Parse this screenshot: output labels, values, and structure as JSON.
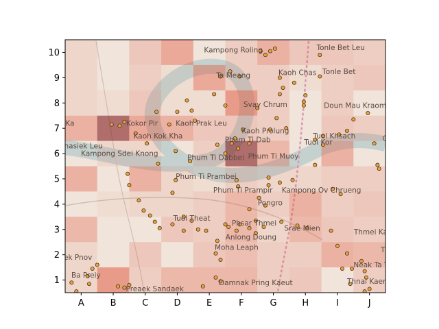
{
  "chart_data": {
    "type": "heatmap",
    "title": "",
    "xlabel": "",
    "ylabel": "",
    "x_categories": [
      "A",
      "B",
      "C",
      "D",
      "E",
      "F",
      "G",
      "H",
      "I",
      "J"
    ],
    "y_categories": [
      "1",
      "2",
      "3",
      "4",
      "5",
      "6",
      "7",
      "8",
      "9",
      "10"
    ],
    "grid": false,
    "colormap": "Reds (semi-transparent over basemap)",
    "cell_intensity_rows_top_to_bottom": [
      [
        0.15,
        0.05,
        0.25,
        0.45,
        0.05,
        0.2,
        0.4,
        0.25,
        0.25,
        0.2
      ],
      [
        0.15,
        0.05,
        0.2,
        0.1,
        0.45,
        0.2,
        0.2,
        0.1,
        0.2,
        0.25
      ],
      [
        0.15,
        0.1,
        0.25,
        0.1,
        0.1,
        0.55,
        0.2,
        0.05,
        0.2,
        0.05
      ],
      [
        0.4,
        0.75,
        0.45,
        0.4,
        0.25,
        0.25,
        0.2,
        0.05,
        0.25,
        0.2
      ],
      [
        0.05,
        0.15,
        0.15,
        0.05,
        0.2,
        0.75,
        0.35,
        0.05,
        0.4,
        0.05
      ],
      [
        0.4,
        0.05,
        0.4,
        0.15,
        0.1,
        0.2,
        0.15,
        0.15,
        0.2,
        0.2
      ],
      [
        0.05,
        0.1,
        0.15,
        0.15,
        0.2,
        0.35,
        0.2,
        0.4,
        0.2,
        0.25
      ],
      [
        0.35,
        0.05,
        0.05,
        0.25,
        0.2,
        0.35,
        0.15,
        0.35,
        0.25,
        0.2
      ],
      [
        0.15,
        0.05,
        0.25,
        0.05,
        0.25,
        0.3,
        0.2,
        0.2,
        0.4,
        0.35
      ],
      [
        0.15,
        0.55,
        0.2,
        0.35,
        0.35,
        0.35,
        0.2,
        0.25,
        0.05,
        0.2
      ]
    ],
    "points": [
      [
        1.95,
        7.15
      ],
      [
        2.35,
        7.25
      ],
      [
        2.2,
        7.1
      ],
      [
        3.35,
        7.65
      ],
      [
        2.7,
        6.8
      ],
      [
        3.05,
        6.4
      ],
      [
        3.95,
        6.1
      ],
      [
        3.4,
        5.6
      ],
      [
        4.4,
        5.7
      ],
      [
        5.25,
        6.35
      ],
      [
        5.5,
        6.0
      ],
      [
        5.7,
        6.4
      ],
      [
        5.8,
        6.6
      ],
      [
        6.25,
        6.4
      ],
      [
        5.9,
        6.2
      ],
      [
        5.9,
        4.7
      ],
      [
        5.85,
        4.95
      ],
      [
        6.55,
        4.25
      ],
      [
        6.85,
        4.75
      ],
      [
        5.6,
        3.1
      ],
      [
        5.5,
        3.2
      ],
      [
        5.85,
        2.95
      ],
      [
        5.95,
        3.2
      ],
      [
        6.25,
        3.05
      ],
      [
        6.45,
        3.35
      ],
      [
        6.7,
        3.1
      ],
      [
        6.45,
        2.85
      ],
      [
        5.25,
        2.55
      ],
      [
        5.2,
        2.05
      ],
      [
        5.35,
        1.8
      ],
      [
        5.2,
        1.1
      ],
      [
        5.35,
        0.95
      ],
      [
        4.8,
        0.75
      ],
      [
        2.15,
        0.75
      ],
      [
        2.5,
        0.8
      ],
      [
        2.35,
        0.7
      ],
      [
        6.6,
        10.05
      ],
      [
        6.9,
        10.05
      ],
      [
        7.05,
        10.15
      ],
      [
        6.75,
        9.9
      ],
      [
        5.65,
        9.25
      ],
      [
        5.35,
        9.05
      ],
      [
        5.95,
        9.05
      ],
      [
        7.2,
        9.0
      ],
      [
        7.3,
        8.6
      ],
      [
        7.2,
        8.35
      ],
      [
        7.1,
        7.4
      ],
      [
        7.4,
        7.0
      ],
      [
        6.9,
        6.95
      ],
      [
        6.5,
        7.8
      ],
      [
        7.95,
        8.05
      ],
      [
        7.95,
        7.9
      ],
      [
        8.0,
        8.3
      ],
      [
        7.65,
        8.8
      ],
      [
        8.45,
        9.05
      ],
      [
        8.45,
        9.9
      ],
      [
        4.3,
        8.1
      ],
      [
        4.0,
        7.65
      ],
      [
        4.45,
        7.7
      ],
      [
        4.55,
        7.3
      ],
      [
        3.75,
        7.15
      ],
      [
        5.15,
        8.35
      ],
      [
        5.5,
        7.9
      ],
      [
        6.05,
        6.95
      ],
      [
        6.85,
        5.05
      ],
      [
        7.2,
        4.85
      ],
      [
        7.6,
        4.95
      ],
      [
        6.75,
        3.95
      ],
      [
        6.25,
        3.8
      ],
      [
        7.25,
        3.3
      ],
      [
        7.75,
        3.15
      ],
      [
        8.05,
        3.05
      ],
      [
        8.8,
        2.95
      ],
      [
        9.0,
        2.35
      ],
      [
        9.3,
        2.05
      ],
      [
        9.15,
        1.45
      ],
      [
        9.45,
        1.45
      ],
      [
        9.75,
        1.75
      ],
      [
        9.85,
        1.35
      ],
      [
        9.9,
        1.1
      ],
      [
        9.4,
        0.85
      ],
      [
        10.0,
        0.65
      ],
      [
        9.85,
        0.55
      ],
      [
        10.25,
        5.55
      ],
      [
        10.3,
        5.4
      ],
      [
        10.15,
        6.4
      ],
      [
        9.95,
        7.6
      ],
      [
        9.5,
        7.35
      ],
      [
        9.3,
        6.9
      ],
      [
        9.05,
        6.75
      ],
      [
        8.55,
        6.7
      ],
      [
        8.3,
        6.55
      ],
      [
        8.55,
        6.35
      ],
      [
        8.3,
        5.55
      ],
      [
        8.85,
        4.6
      ],
      [
        9.1,
        4.4
      ],
      [
        1.5,
        1.6
      ],
      [
        1.35,
        1.45
      ],
      [
        1.2,
        1.15
      ],
      [
        0.7,
        0.9
      ],
      [
        0.85,
        0.55
      ],
      [
        1.25,
        0.85
      ],
      [
        2.45,
        5.2
      ],
      [
        2.5,
        4.75
      ],
      [
        2.8,
        4.15
      ],
      [
        2.95,
        3.75
      ],
      [
        3.3,
        3.3
      ],
      [
        3.15,
        3.55
      ],
      [
        3.45,
        3.05
      ],
      [
        3.85,
        3.2
      ],
      [
        4.2,
        3.5
      ],
      [
        4.45,
        3.35
      ],
      [
        4.2,
        2.95
      ],
      [
        4.65,
        3.0
      ],
      [
        4.9,
        2.95
      ],
      [
        3.85,
        4.45
      ],
      [
        3.95,
        4.95
      ]
    ]
  },
  "map_labels": [
    {
      "text": "Kampong Roling",
      "x": 5.75,
      "y": 10.0
    },
    {
      "text": "Tonle Bet Leu",
      "x": 9.1,
      "y": 10.1
    },
    {
      "text": "Ta Meang",
      "x": 5.75,
      "y": 9.0
    },
    {
      "text": "Kaoh Chas",
      "x": 7.75,
      "y": 9.1
    },
    {
      "text": "Tonle Bet",
      "x": 9.05,
      "y": 9.15
    },
    {
      "text": "Svay Chrum",
      "x": 6.75,
      "y": 7.85
    },
    {
      "text": "Doun Mau Kraom",
      "x": 9.55,
      "y": 7.8
    },
    {
      "text": "Ka",
      "x": 0.65,
      "y": 7.1
    },
    {
      "text": "Kokor Pir",
      "x": 2.9,
      "y": 7.1
    },
    {
      "text": "Kaoh Prak Leu",
      "x": 4.75,
      "y": 7.1
    },
    {
      "text": "Kaoh Prolung",
      "x": 6.75,
      "y": 6.8
    },
    {
      "text": "Kaoh Kok Kha",
      "x": 3.4,
      "y": 6.6
    },
    {
      "text": "Tuol Khsach",
      "x": 8.9,
      "y": 6.6
    },
    {
      "text": "Chr",
      "x": 10.6,
      "y": 6.5
    },
    {
      "text": "ohasiek Leu",
      "x": 1.0,
      "y": 6.2
    },
    {
      "text": "Phum Ti Dab",
      "x": 6.2,
      "y": 6.45
    },
    {
      "text": "Tuol Kor",
      "x": 8.4,
      "y": 6.35
    },
    {
      "text": "Kampong Sdei Knong",
      "x": 2.2,
      "y": 5.9
    },
    {
      "text": "Phum Ti Dabbei",
      "x": 5.2,
      "y": 5.75
    },
    {
      "text": "Phum Ti Muoy",
      "x": 7.0,
      "y": 5.8
    },
    {
      "text": "Phum Ti Prambei",
      "x": 4.9,
      "y": 5.0
    },
    {
      "text": "Phum Ti Prampir",
      "x": 6.05,
      "y": 4.45
    },
    {
      "text": "Kampong Ov Chrueng",
      "x": 8.5,
      "y": 4.45
    },
    {
      "text": "Pongro",
      "x": 6.9,
      "y": 3.95
    },
    {
      "text": "Tuol Theat",
      "x": 4.45,
      "y": 3.35
    },
    {
      "text": "Phsar Thmei",
      "x": 6.4,
      "y": 3.15
    },
    {
      "text": "Srae Mien",
      "x": 7.9,
      "y": 2.95
    },
    {
      "text": "Thmei Kanda",
      "x": 10.25,
      "y": 2.8
    },
    {
      "text": "Anlong Doung",
      "x": 6.3,
      "y": 2.6
    },
    {
      "text": "Thmei",
      "x": 10.7,
      "y": 2.1
    },
    {
      "text": "Moha Leaph",
      "x": 5.85,
      "y": 2.2
    },
    {
      "text": "ek Pnov",
      "x": 0.9,
      "y": 1.8
    },
    {
      "text": "Neak Ta Tvear",
      "x": 10.3,
      "y": 1.5
    },
    {
      "text": "Ba Preiy",
      "x": 1.15,
      "y": 1.1
    },
    {
      "text": "Damnak Pring Kaeut",
      "x": 6.45,
      "y": 0.8
    },
    {
      "text": "Thnal Kaeng",
      "x": 10.0,
      "y": 0.85
    },
    {
      "text": "Preaek Sandaek",
      "x": 3.3,
      "y": 0.55
    }
  ],
  "colors": {
    "heat": "#e0573e",
    "basemap": "#f2ede4",
    "river": "#bcd4d4",
    "point_fill": "#e8a33a",
    "point_edge": "#4a3020",
    "road": "#d9a0b8"
  }
}
